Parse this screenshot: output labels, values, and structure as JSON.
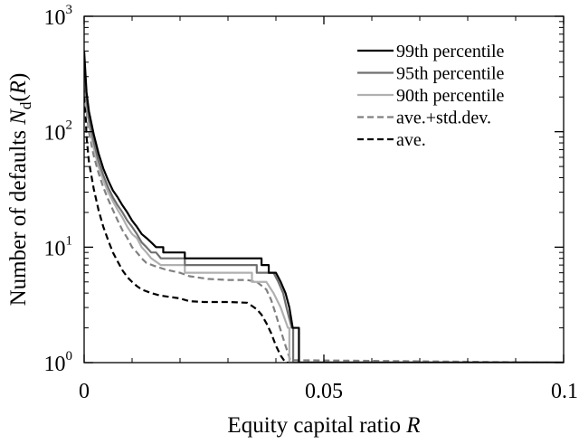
{
  "chart_data": {
    "type": "line",
    "xlabel": {
      "main": "Equity capital ratio ",
      "var": "R"
    },
    "ylabel": {
      "main": "Number of defaults ",
      "var": "N",
      "sub": "d",
      "open": "(",
      "arg": "R",
      "close": ")"
    },
    "xlim": [
      0,
      0.1
    ],
    "ylim": [
      1,
      1000
    ],
    "yscale": "log",
    "x_ticks": [
      {
        "value": 0,
        "label": "0"
      },
      {
        "value": 0.05,
        "label": "0.05"
      },
      {
        "value": 0.1,
        "label": "0.1"
      }
    ],
    "y_ticks": [
      {
        "value": 1,
        "base": "10",
        "exp": "0"
      },
      {
        "value": 10,
        "base": "10",
        "exp": "1"
      },
      {
        "value": 100,
        "base": "10",
        "exp": "2"
      },
      {
        "value": 1000,
        "base": "10",
        "exp": "3"
      }
    ],
    "legend_position": "top-right",
    "series": [
      {
        "name": "99th percentile",
        "color": "#000000",
        "dash": "solid",
        "points": [
          [
            0,
            500
          ],
          [
            0.0005,
            220
          ],
          [
            0.001,
            150
          ],
          [
            0.002,
            95
          ],
          [
            0.003,
            65
          ],
          [
            0.004,
            48
          ],
          [
            0.005,
            38
          ],
          [
            0.006,
            31
          ],
          [
            0.007,
            27
          ],
          [
            0.008,
            23
          ],
          [
            0.009,
            20
          ],
          [
            0.01,
            17
          ],
          [
            0.011,
            15
          ],
          [
            0.012,
            13
          ],
          [
            0.013,
            12
          ],
          [
            0.014,
            11
          ],
          [
            0.015,
            10
          ],
          [
            0.0165,
            10
          ],
          [
            0.0165,
            9
          ],
          [
            0.021,
            9
          ],
          [
            0.021,
            8
          ],
          [
            0.037,
            8
          ],
          [
            0.037,
            7
          ],
          [
            0.0385,
            7
          ],
          [
            0.0385,
            6
          ],
          [
            0.04,
            6
          ],
          [
            0.041,
            5
          ],
          [
            0.042,
            4
          ],
          [
            0.0428,
            3
          ],
          [
            0.0435,
            2
          ],
          [
            0.0448,
            2
          ],
          [
            0.0448,
            1
          ],
          [
            0.1,
            1
          ]
        ]
      },
      {
        "name": "95th percentile",
        "color": "#707070",
        "dash": "solid",
        "points": [
          [
            0,
            450
          ],
          [
            0.0005,
            190
          ],
          [
            0.001,
            130
          ],
          [
            0.002,
            82
          ],
          [
            0.003,
            56
          ],
          [
            0.004,
            42
          ],
          [
            0.005,
            33
          ],
          [
            0.006,
            27
          ],
          [
            0.007,
            23
          ],
          [
            0.008,
            20
          ],
          [
            0.009,
            17
          ],
          [
            0.01,
            15
          ],
          [
            0.011,
            13
          ],
          [
            0.012,
            11
          ],
          [
            0.013,
            10
          ],
          [
            0.014,
            9
          ],
          [
            0.015,
            9
          ],
          [
            0.016,
            8
          ],
          [
            0.021,
            8
          ],
          [
            0.021,
            7
          ],
          [
            0.036,
            7
          ],
          [
            0.036,
            6
          ],
          [
            0.0395,
            6
          ],
          [
            0.0405,
            5
          ],
          [
            0.0415,
            4
          ],
          [
            0.0422,
            3
          ],
          [
            0.0433,
            2
          ],
          [
            0.0436,
            2
          ],
          [
            0.0436,
            1
          ],
          [
            0.1,
            1
          ]
        ]
      },
      {
        "name": "90th percentile",
        "color": "#b0b0b0",
        "dash": "solid",
        "points": [
          [
            0,
            420
          ],
          [
            0.0005,
            170
          ],
          [
            0.001,
            115
          ],
          [
            0.002,
            72
          ],
          [
            0.003,
            50
          ],
          [
            0.004,
            38
          ],
          [
            0.005,
            30
          ],
          [
            0.006,
            25
          ],
          [
            0.007,
            21
          ],
          [
            0.008,
            18
          ],
          [
            0.009,
            15
          ],
          [
            0.01,
            13
          ],
          [
            0.011,
            12
          ],
          [
            0.012,
            10
          ],
          [
            0.013,
            9
          ],
          [
            0.014,
            8
          ],
          [
            0.016,
            7
          ],
          [
            0.021,
            7
          ],
          [
            0.021,
            6
          ],
          [
            0.035,
            6
          ],
          [
            0.035,
            5
          ],
          [
            0.038,
            5
          ],
          [
            0.0395,
            4
          ],
          [
            0.041,
            3
          ],
          [
            0.0425,
            2
          ],
          [
            0.0428,
            2
          ],
          [
            0.0428,
            1
          ],
          [
            0.1,
            1
          ]
        ]
      },
      {
        "name": "ave.+std.dev.",
        "color": "#808080",
        "dash": "dashed",
        "points": [
          [
            0,
            400
          ],
          [
            0.0005,
            150
          ],
          [
            0.001,
            100
          ],
          [
            0.002,
            62
          ],
          [
            0.003,
            44
          ],
          [
            0.004,
            33
          ],
          [
            0.005,
            26
          ],
          [
            0.006,
            21
          ],
          [
            0.007,
            17
          ],
          [
            0.008,
            14
          ],
          [
            0.009,
            12
          ],
          [
            0.01,
            10
          ],
          [
            0.011,
            9
          ],
          [
            0.012,
            8
          ],
          [
            0.013,
            7.3
          ],
          [
            0.015,
            6.8
          ],
          [
            0.017,
            6.4
          ],
          [
            0.02,
            6
          ],
          [
            0.022,
            5.6
          ],
          [
            0.026,
            5.3
          ],
          [
            0.03,
            5.2
          ],
          [
            0.034,
            5.2
          ],
          [
            0.036,
            5
          ],
          [
            0.038,
            4.3
          ],
          [
            0.039,
            3.5
          ],
          [
            0.04,
            2.6
          ],
          [
            0.041,
            1.9
          ],
          [
            0.042,
            1.4
          ],
          [
            0.043,
            1.05
          ],
          [
            0.1,
            1
          ]
        ]
      },
      {
        "name": "ave.",
        "color": "#000000",
        "dash": "dashed",
        "points": [
          [
            0,
            300
          ],
          [
            0.0005,
            90
          ],
          [
            0.001,
            55
          ],
          [
            0.002,
            32
          ],
          [
            0.003,
            21
          ],
          [
            0.004,
            15
          ],
          [
            0.005,
            11.5
          ],
          [
            0.006,
            9
          ],
          [
            0.007,
            7.5
          ],
          [
            0.008,
            6.3
          ],
          [
            0.009,
            5.5
          ],
          [
            0.01,
            5
          ],
          [
            0.011,
            4.6
          ],
          [
            0.012,
            4.3
          ],
          [
            0.014,
            4
          ],
          [
            0.016,
            3.8
          ],
          [
            0.018,
            3.7
          ],
          [
            0.02,
            3.6
          ],
          [
            0.022,
            3.4
          ],
          [
            0.025,
            3.35
          ],
          [
            0.03,
            3.35
          ],
          [
            0.034,
            3.3
          ],
          [
            0.035,
            3.1
          ],
          [
            0.036,
            2.9
          ],
          [
            0.037,
            2.6
          ],
          [
            0.038,
            2.2
          ],
          [
            0.039,
            1.8
          ],
          [
            0.04,
            1.4
          ],
          [
            0.041,
            1.15
          ],
          [
            0.042,
            1
          ],
          [
            0.1,
            1
          ]
        ]
      }
    ]
  }
}
